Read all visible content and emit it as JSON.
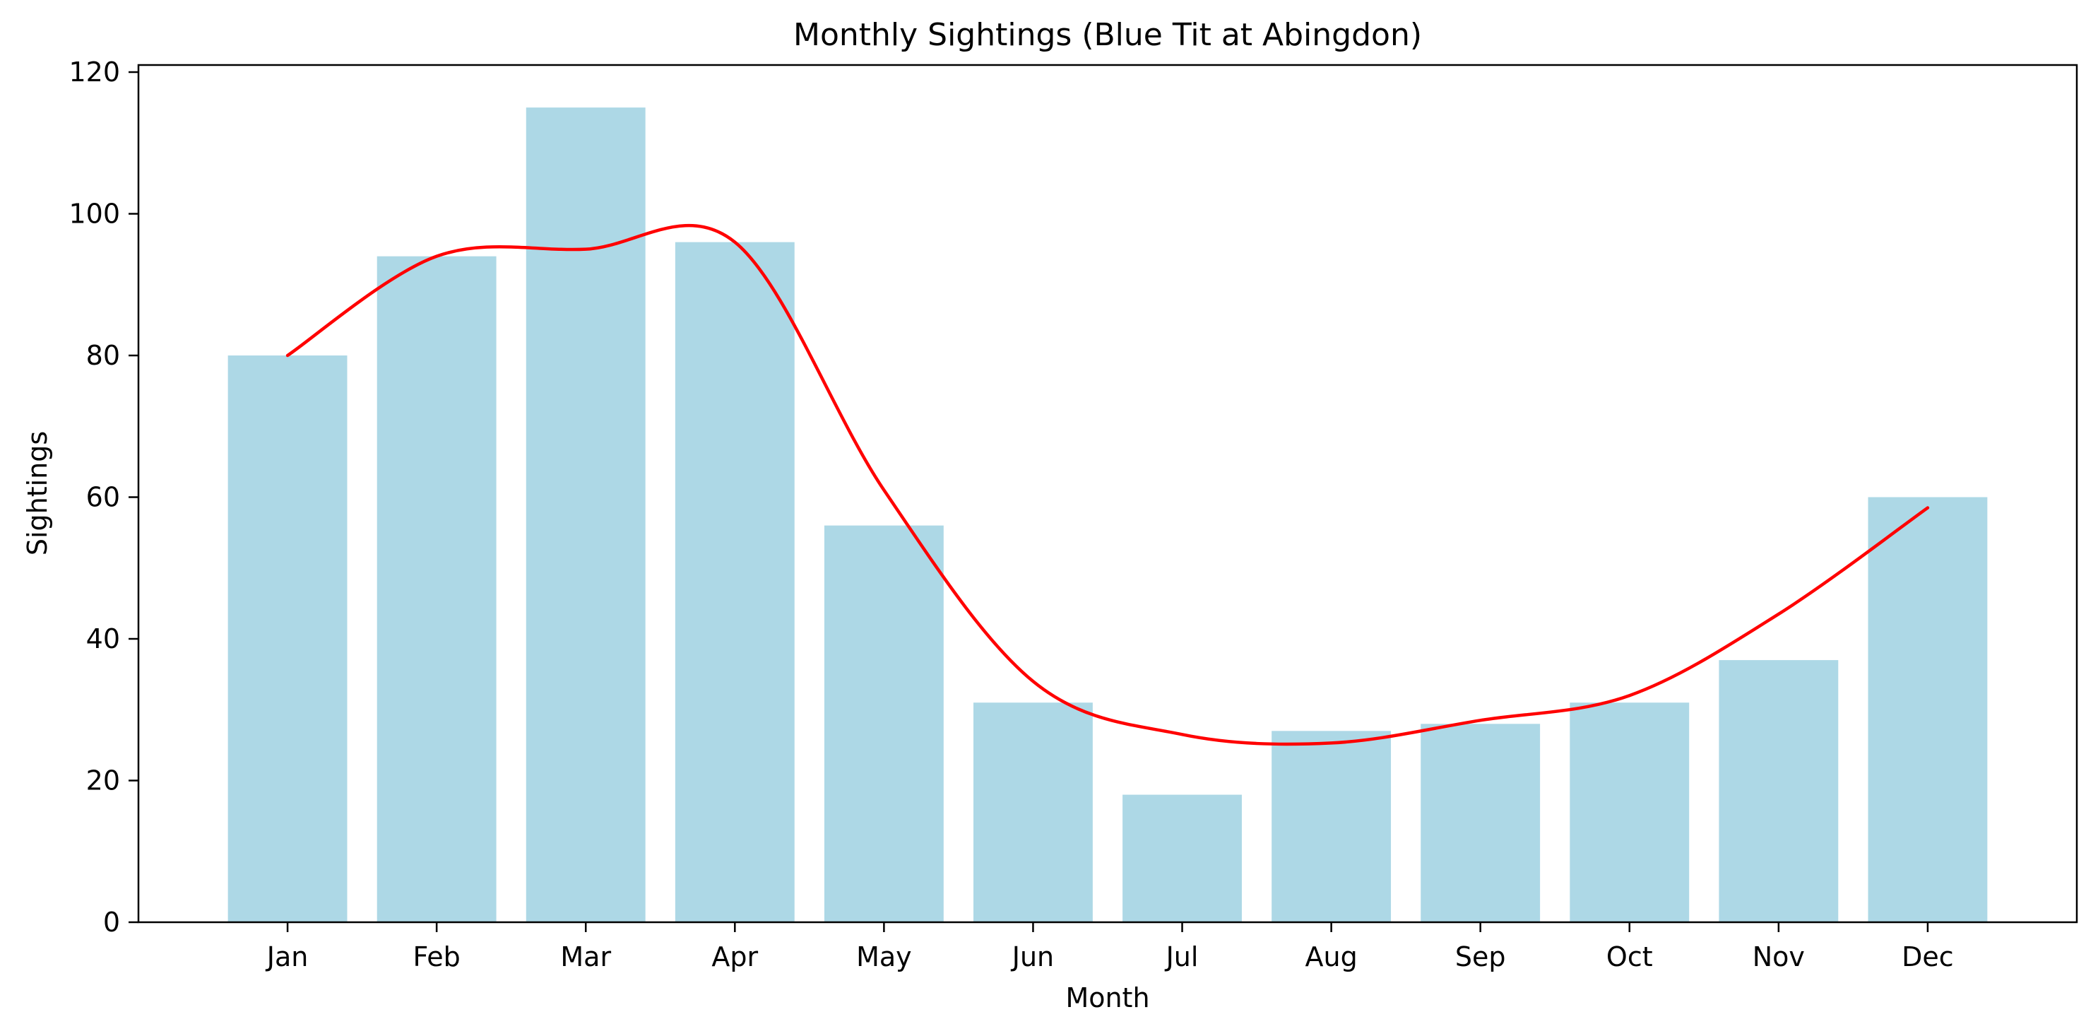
{
  "chart_data": {
    "type": "bar",
    "title": "Monthly Sightings (Blue Tit at Abingdon)",
    "xlabel": "Month",
    "ylabel": "Sightings",
    "categories": [
      "Jan",
      "Feb",
      "Mar",
      "Apr",
      "May",
      "Jun",
      "Jul",
      "Aug",
      "Sep",
      "Oct",
      "Nov",
      "Dec"
    ],
    "values": [
      80,
      94,
      115,
      96,
      56,
      31,
      18,
      27,
      28,
      31,
      37,
      60
    ],
    "trend_values": [
      80,
      94,
      95,
      96,
      61,
      34,
      26.5,
      25.3,
      28.5,
      32,
      43.5,
      58.5
    ],
    "ylim": [
      0,
      121
    ],
    "yticks": [
      0,
      20,
      40,
      60,
      80,
      100,
      120
    ],
    "grid": false,
    "colors": {
      "bar": "#add8e6",
      "trend": "#ff0000"
    }
  }
}
